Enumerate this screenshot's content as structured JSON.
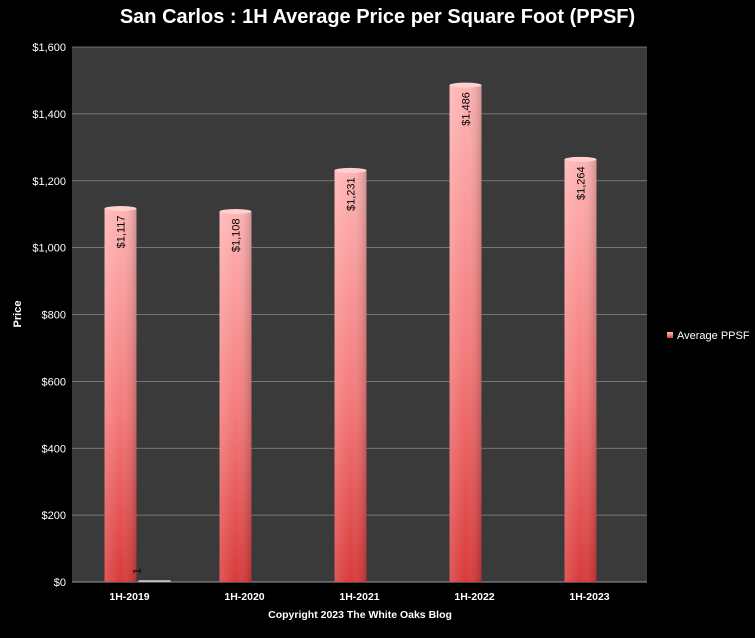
{
  "chart_data": {
    "type": "bar",
    "title": "San Carlos : 1H Average Price per Square Foot (PPSF)",
    "xlabel": "Copyright 2023 The White  Oaks Blog",
    "ylabel": "Price",
    "categories": [
      "1H-2019",
      "1H-2020",
      "1H-2021",
      "1H-2022",
      "1H-2023"
    ],
    "series": [
      {
        "name": "Average PPSF",
        "values": [
          1117,
          1108,
          1231,
          1486,
          1264
        ],
        "labels": [
          "$1,117",
          "$1,108",
          "$1,231",
          "$1,486",
          "$1,264"
        ],
        "color": "#f47a7a"
      },
      {
        "values": [
          1,
          null,
          null,
          null,
          null
        ],
        "labels": [
          "1",
          "",
          "",
          "",
          ""
        ],
        "color": "#c0c0c0"
      }
    ],
    "ylim": [
      0,
      1600
    ],
    "yticks": [
      0,
      200,
      400,
      600,
      800,
      1000,
      1200,
      1400,
      1600
    ],
    "ytick_labels": [
      "$0",
      "$200",
      "$400",
      "$600",
      "$800",
      "$1,000",
      "$1,200",
      "$1,400",
      "$1,600"
    ],
    "grid": true,
    "legend": "right",
    "colors": {
      "background": "#000000",
      "plot_area": "#3a3a3a",
      "grid": "#8a8a8a"
    }
  }
}
